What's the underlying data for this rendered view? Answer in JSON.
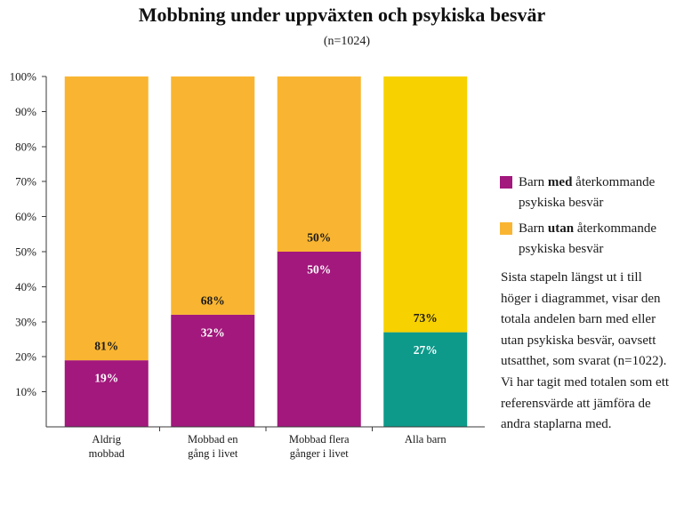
{
  "title": "Mobbning under uppväxten och psykiska besvär",
  "subtitle": "(n=1024)",
  "legend": [
    {
      "pre": "Barn ",
      "bold": "med",
      "post": " återkommande",
      "line2": "psykiska besvär",
      "color": "#A2187C"
    },
    {
      "pre": "Barn ",
      "bold": "utan",
      "post": " återkommande",
      "line2": "psykiska besvär",
      "color": "#F9B531"
    }
  ],
  "note": {
    "lines": [
      "Sista stapeln längst ut i till",
      "höger i diagrammet, visar den",
      "totala andelen barn med eller",
      "utan psykiska besvär, oavsett",
      "utsatthet, som svarat (n=1022).",
      "Vi har tagit med totalen som ett",
      "referensvärde att jämföra de",
      "andra staplarna med."
    ]
  },
  "chart_data": {
    "type": "bar",
    "stacked": true,
    "categories": [
      [
        "Aldrig",
        "mobbad"
      ],
      [
        "Mobbad en",
        "gång i livet"
      ],
      [
        "Mobbad flera",
        "gånger i livet"
      ],
      [
        "Alla barn"
      ]
    ],
    "series": [
      {
        "legend_index": 0,
        "values": [
          19,
          32,
          50,
          27
        ],
        "labels": [
          "19%",
          "32%",
          "50%",
          "27%"
        ],
        "colors": [
          "#A2187C",
          "#A2187C",
          "#A2187C",
          "#0D9A8B"
        ],
        "label_color": "#FFFFFF"
      },
      {
        "legend_index": 1,
        "values": [
          81,
          68,
          50,
          73
        ],
        "labels": [
          "81%",
          "68%",
          "50%",
          "73%"
        ],
        "colors": [
          "#F9B531",
          "#F9B531",
          "#F9B531",
          "#F7D100"
        ],
        "label_color": "#1A1A1A"
      }
    ],
    "ylim": [
      0,
      100
    ],
    "yticks": [
      10,
      20,
      30,
      40,
      50,
      60,
      70,
      80,
      90,
      100
    ],
    "ytick_labels": [
      "10%",
      "20%",
      "30%",
      "40%",
      "50%",
      "60%",
      "70%",
      "80%",
      "90%",
      "100%"
    ],
    "grid": false,
    "legend_position": "right"
  }
}
